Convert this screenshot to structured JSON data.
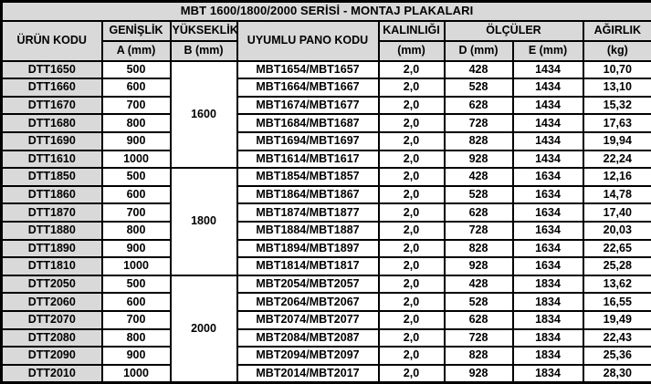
{
  "title": "MBT 1600/1800/2000 SERİSİ - MONTAJ PLAKALARI",
  "style": {
    "header_bg": "#d9d9d9",
    "cell_bg": "#ffffff",
    "border_color": "#000000",
    "text_color": "#000000"
  },
  "columns": {
    "urun_kodu": "ÜRÜN KODU",
    "genislik": "GENİŞLİK",
    "genislik_sub": "A (mm)",
    "yukseklik": "YÜKSEKLİK",
    "yukseklik_sub": "B (mm)",
    "pano": "UYUMLU PANO KODU",
    "kalinlik": "KALINLIĞI",
    "kalinlik_sub": "(mm)",
    "olculer": "ÖLÇÜLER",
    "d": "D (mm)",
    "e": "E (mm)",
    "agirlik": "AĞIRLIK",
    "agirlik_sub": "(kg)"
  },
  "groups": [
    {
      "height_b": "1600",
      "rows": [
        {
          "code": "DTT1650",
          "width_a": "500",
          "pano": "MBT1654/MBT1657",
          "thickness": "2,0",
          "d": "428",
          "e": "1434",
          "weight": "10,70"
        },
        {
          "code": "DTT1660",
          "width_a": "600",
          "pano": "MBT1664/MBT1667",
          "thickness": "2,0",
          "d": "528",
          "e": "1434",
          "weight": "13,10"
        },
        {
          "code": "DTT1670",
          "width_a": "700",
          "pano": "MBT1674/MBT1677",
          "thickness": "2,0",
          "d": "628",
          "e": "1434",
          "weight": "15,32"
        },
        {
          "code": "DTT1680",
          "width_a": "800",
          "pano": "MBT1684/MBT1687",
          "thickness": "2,0",
          "d": "728",
          "e": "1434",
          "weight": "17,63"
        },
        {
          "code": "DTT1690",
          "width_a": "900",
          "pano": "MBT1694/MBT1697",
          "thickness": "2,0",
          "d": "828",
          "e": "1434",
          "weight": "19,94"
        },
        {
          "code": "DTT1610",
          "width_a": "1000",
          "pano": "MBT1614/MBT1617",
          "thickness": "2,0",
          "d": "928",
          "e": "1434",
          "weight": "22,24"
        }
      ]
    },
    {
      "height_b": "1800",
      "rows": [
        {
          "code": "DTT1850",
          "width_a": "500",
          "pano": "MBT1854/MBT1857",
          "thickness": "2,0",
          "d": "428",
          "e": "1634",
          "weight": "12,16"
        },
        {
          "code": "DTT1860",
          "width_a": "600",
          "pano": "MBT1864/MBT1867",
          "thickness": "2,0",
          "d": "528",
          "e": "1634",
          "weight": "14,78"
        },
        {
          "code": "DTT1870",
          "width_a": "700",
          "pano": "MBT1874/MBT1877",
          "thickness": "2,0",
          "d": "628",
          "e": "1634",
          "weight": "17,40"
        },
        {
          "code": "DTT1880",
          "width_a": "800",
          "pano": "MBT1884/MBT1887",
          "thickness": "2,0",
          "d": "728",
          "e": "1634",
          "weight": "20,03"
        },
        {
          "code": "DTT1890",
          "width_a": "900",
          "pano": "MBT1894/MBT1897",
          "thickness": "2,0",
          "d": "828",
          "e": "1634",
          "weight": "22,65"
        },
        {
          "code": "DTT1810",
          "width_a": "1000",
          "pano": "MBT1814/MBT1817",
          "thickness": "2,0",
          "d": "928",
          "e": "1634",
          "weight": "25,28"
        }
      ]
    },
    {
      "height_b": "2000",
      "rows": [
        {
          "code": "DTT2050",
          "width_a": "500",
          "pano": "MBT2054/MBT2057",
          "thickness": "2,0",
          "d": "428",
          "e": "1834",
          "weight": "13,62"
        },
        {
          "code": "DTT2060",
          "width_a": "600",
          "pano": "MBT2064/MBT2067",
          "thickness": "2,0",
          "d": "528",
          "e": "1834",
          "weight": "16,55"
        },
        {
          "code": "DTT2070",
          "width_a": "700",
          "pano": "MBT2074/MBT2077",
          "thickness": "2,0",
          "d": "628",
          "e": "1834",
          "weight": "19,49"
        },
        {
          "code": "DTT2080",
          "width_a": "800",
          "pano": "MBT2084/MBT2087",
          "thickness": "2,0",
          "d": "728",
          "e": "1834",
          "weight": "22,43"
        },
        {
          "code": "DTT2090",
          "width_a": "900",
          "pano": "MBT2094/MBT2097",
          "thickness": "2,0",
          "d": "828",
          "e": "1834",
          "weight": "25,36"
        },
        {
          "code": "DTT2010",
          "width_a": "1000",
          "pano": "MBT2014/MBT2017",
          "thickness": "2,0",
          "d": "928",
          "e": "1834",
          "weight": "28,30"
        }
      ]
    }
  ]
}
